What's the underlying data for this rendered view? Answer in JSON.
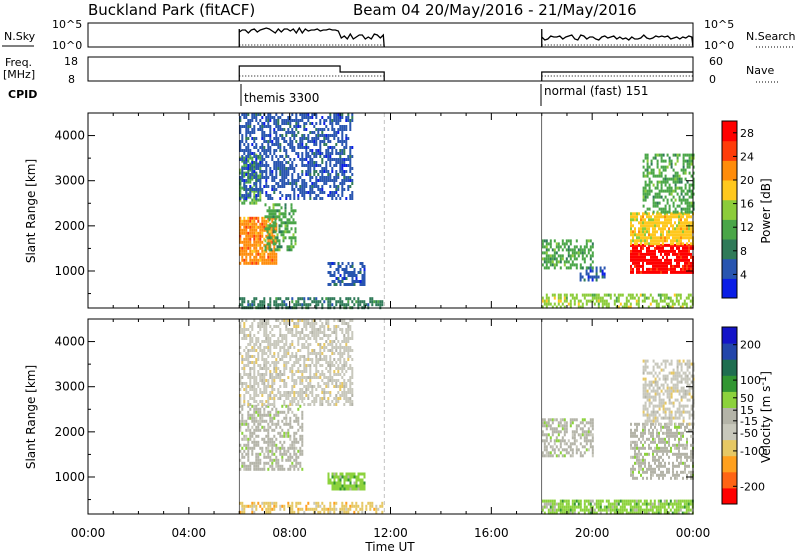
{
  "header": {
    "station": "Buckland Park (fitACF)",
    "beam_date": "Beam 04 20/May/2016 - 21/May/2016"
  },
  "nsky_panel": {
    "left_label": "N.Sky",
    "tick_top": "10^5",
    "tick_bottom": "10^0",
    "right_label": "N.Search",
    "right_tick_top": "10^5",
    "right_tick_bottom": "10^0"
  },
  "freq_panel": {
    "left_label_1": "Freq.",
    "left_label_2": "[MHz]",
    "tick_top": "18",
    "tick_bottom": "8",
    "right_label": "Nave",
    "right_tick_top": "60",
    "right_tick_bottom": "0"
  },
  "cpid": {
    "label": "CPID",
    "segments": [
      {
        "name": "themis 3300",
        "start_h": 6.0,
        "end_h": 11.75
      },
      {
        "name": "normal (fast) 151",
        "start_h": 18.0,
        "end_h": 24.0
      }
    ]
  },
  "colors": {
    "power_scale": [
      "#0a1ee6",
      "#2855b0",
      "#2f7a58",
      "#4aa648",
      "#8ccc3a",
      "#ffc81e",
      "#ff8c0a",
      "#ff3c0a",
      "#ff0000"
    ],
    "velocity_scale": [
      "#ff0000",
      "#ff6414",
      "#ffa01e",
      "#e6c864",
      "#c8c8bc",
      "#b4b4a8",
      "#8cd23c",
      "#329632",
      "#1f6e50",
      "#2346aa",
      "#1414c8"
    ],
    "ground_scatter": "#b4b4a8"
  },
  "chart_data": [
    {
      "type": "heatmap",
      "title": "",
      "xlabel": "Time UT",
      "ylabel": "Slant Range [km]",
      "xlim": [
        "00:00",
        "24:00"
      ],
      "ylim": [
        180,
        4500
      ],
      "x_ticks": [
        "00:00",
        "04:00",
        "08:00",
        "12:00",
        "16:00",
        "20:00",
        "00:00"
      ],
      "y_ticks": [
        1000,
        2000,
        3000,
        4000
      ],
      "colorbar": {
        "label": "Power [dB]",
        "ticks": [
          4,
          8,
          12,
          16,
          20,
          24,
          28
        ],
        "range": [
          0,
          30
        ]
      },
      "data_intervals": [
        [
          6.0,
          11.75
        ],
        [
          18.0,
          24.0
        ]
      ],
      "regions": [
        {
          "t_start": 6.0,
          "t_end": 7.5,
          "range_start": 1150,
          "range_end": 2200,
          "value": 22
        },
        {
          "t_start": 7.0,
          "t_end": 8.2,
          "range_start": 1500,
          "range_end": 2500,
          "value": 12
        },
        {
          "t_start": 6.0,
          "t_end": 6.8,
          "range_start": 2500,
          "range_end": 3600,
          "value": 11
        },
        {
          "t_start": 6.0,
          "t_end": 10.5,
          "range_start": 2600,
          "range_end": 4500,
          "value": 6
        },
        {
          "t_start": 6.0,
          "t_end": 11.7,
          "range_start": 200,
          "range_end": 420,
          "value": 8
        },
        {
          "t_start": 9.5,
          "t_end": 11.0,
          "range_start": 700,
          "range_end": 1200,
          "value": 6
        },
        {
          "t_start": 18.0,
          "t_end": 24.0,
          "range_start": 200,
          "range_end": 500,
          "value": 14
        },
        {
          "t_start": 18.0,
          "t_end": 20.0,
          "range_start": 1100,
          "range_end": 1700,
          "value": 10
        },
        {
          "t_start": 19.5,
          "t_end": 20.5,
          "range_start": 800,
          "range_end": 1100,
          "value": 6
        },
        {
          "t_start": 21.5,
          "t_end": 24.0,
          "range_start": 1000,
          "range_end": 1600,
          "value": 27
        },
        {
          "t_start": 21.5,
          "t_end": 24.0,
          "range_start": 1600,
          "range_end": 2300,
          "value": 17
        },
        {
          "t_start": 22.0,
          "t_end": 24.0,
          "range_start": 2300,
          "range_end": 3600,
          "value": 11
        }
      ]
    },
    {
      "type": "heatmap",
      "title": "",
      "xlabel": "Time UT",
      "ylabel": "Slant Range [km]",
      "xlim": [
        "00:00",
        "24:00"
      ],
      "ylim": [
        180,
        4500
      ],
      "x_ticks": [
        "00:00",
        "04:00",
        "08:00",
        "12:00",
        "16:00",
        "20:00",
        "00:00"
      ],
      "y_ticks": [
        1000,
        2000,
        3000,
        4000
      ],
      "colorbar": {
        "label": "Velocity [m s^-1]",
        "ticks": [
          -200,
          -100,
          -50,
          -15,
          15,
          50,
          100,
          200
        ],
        "range": [
          -250,
          250
        ]
      },
      "data_intervals": [
        [
          6.0,
          11.75
        ],
        [
          18.0,
          24.0
        ]
      ],
      "regions": [
        {
          "t_start": 6.0,
          "t_end": 8.5,
          "range_start": 1200,
          "range_end": 2600,
          "value": 0
        },
        {
          "t_start": 6.0,
          "t_end": 10.5,
          "range_start": 2600,
          "range_end": 4500,
          "value": -60
        },
        {
          "t_start": 6.0,
          "t_end": 11.7,
          "range_start": 200,
          "range_end": 450,
          "value": -80
        },
        {
          "t_start": 9.5,
          "t_end": 11.0,
          "range_start": 750,
          "range_end": 1100,
          "value": 40
        },
        {
          "t_start": 18.0,
          "t_end": 24.0,
          "range_start": 200,
          "range_end": 500,
          "value": 60
        },
        {
          "t_start": 18.0,
          "t_end": 20.0,
          "range_start": 1500,
          "range_end": 2300,
          "value": 0
        },
        {
          "t_start": 21.5,
          "t_end": 24.0,
          "range_start": 1000,
          "range_end": 2200,
          "value": 0
        },
        {
          "t_start": 22.0,
          "t_end": 24.0,
          "range_start": 2200,
          "range_end": 3600,
          "value": -40
        }
      ]
    }
  ]
}
